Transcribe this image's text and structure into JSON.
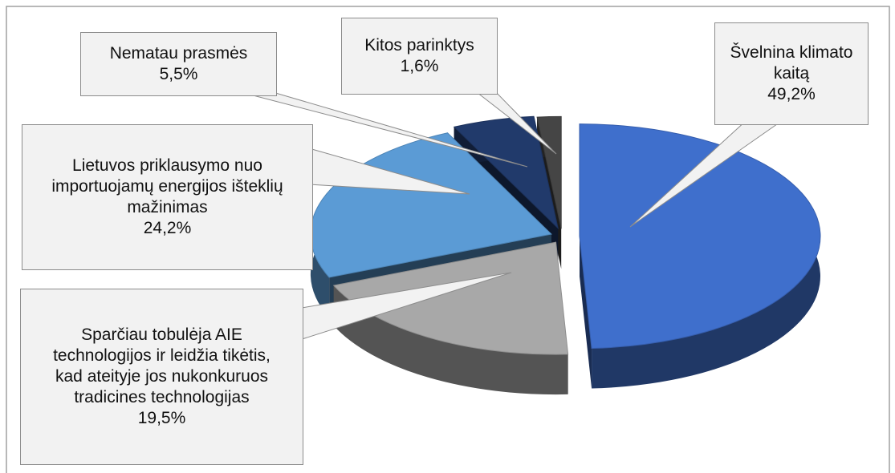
{
  "chart_data": {
    "type": "pie3d",
    "categories": [
      "Švelnina klimato kaitą",
      "Sparčiau tobulėja AIE technologijos ir leidžia tikėtis, kad ateityje jos nukonkuruos tradicines technologijas",
      "Lietuvos priklausymo nuo importuojamų energijos išteklių mažinimas",
      "Nematau prasmės",
      "Kitos parinktys"
    ],
    "values": [
      49.2,
      19.5,
      24.2,
      5.5,
      1.6
    ],
    "value_labels": [
      "49,2%",
      "19,5%",
      "24,2%",
      "5,5%",
      "1,6%"
    ],
    "colors": [
      "#3f6fcc",
      "#a8a8a8",
      "#5b9bd5",
      "#213a6b",
      "#454545"
    ]
  }
}
